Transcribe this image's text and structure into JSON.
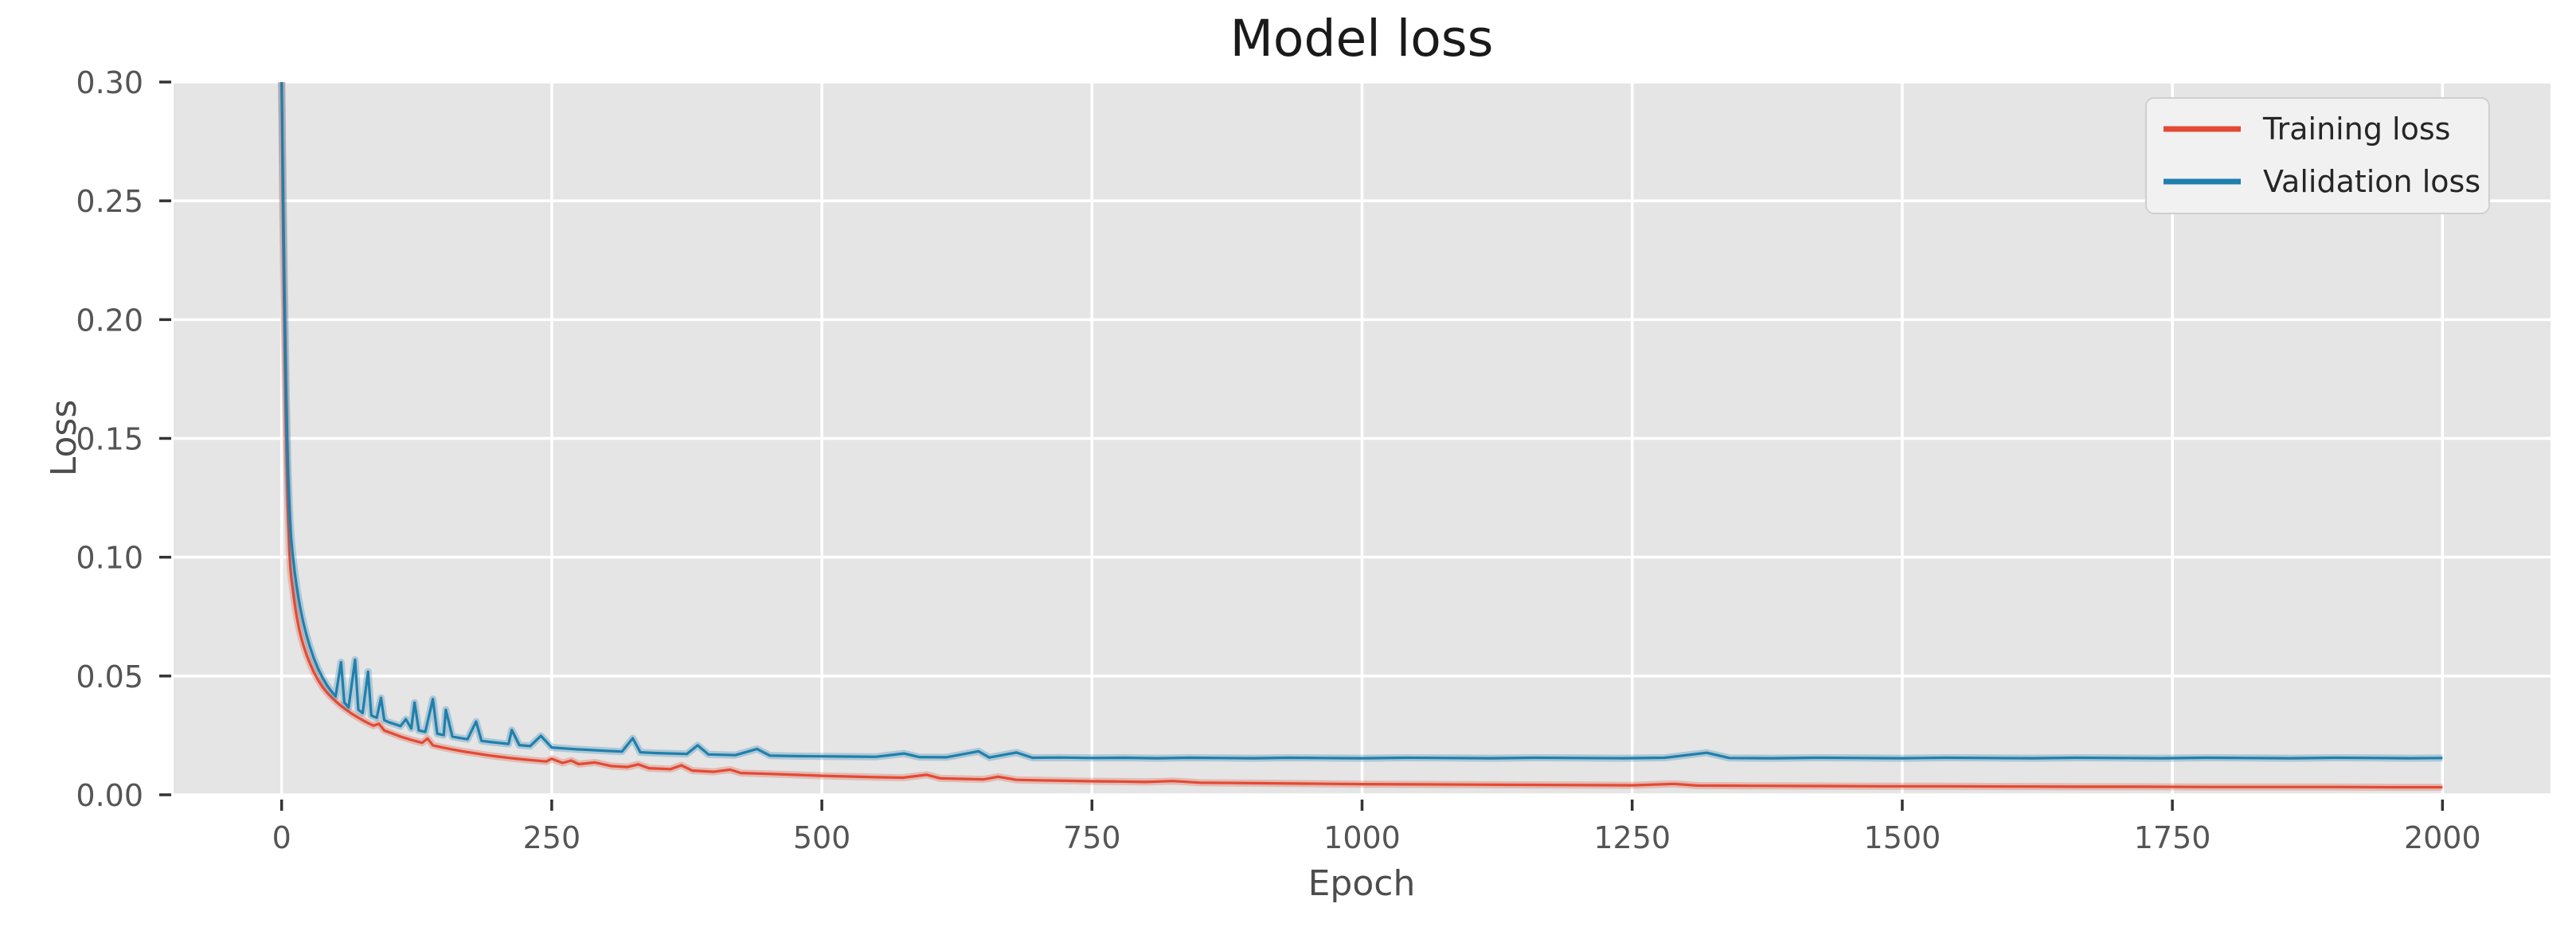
{
  "title": "Model loss",
  "axes": {
    "xlabel": "Epoch",
    "ylabel": "Loss"
  },
  "colors": {
    "figure_bg": "#ffffff",
    "plot_bg": "#e5e5e5",
    "grid": "#ffffff",
    "tick_mark": "#333333",
    "tick_label": "#555555",
    "title_color": "#1a1a1a",
    "axis_label_color": "#4d4d4d",
    "legend_bg": "#f1f1f1",
    "legend_border": "#cfcfcf",
    "training": "#e24a33",
    "validation": "#1f7fad"
  },
  "chart_data": {
    "type": "line",
    "title": "Model loss",
    "xlabel": "Epoch",
    "ylabel": "Loss",
    "xlim": [
      -100,
      2100
    ],
    "ylim": [
      0,
      0.3
    ],
    "xticks": [
      0,
      250,
      500,
      750,
      1000,
      1250,
      1500,
      1750,
      2000
    ],
    "xticklabels": [
      "0",
      "250",
      "500",
      "750",
      "1000",
      "1250",
      "1500",
      "1750",
      "2000"
    ],
    "yticks": [
      0.0,
      0.05,
      0.1,
      0.15,
      0.2,
      0.25,
      0.3
    ],
    "yticklabels": [
      "0.00",
      "0.05",
      "0.10",
      "0.15",
      "0.20",
      "0.25",
      "0.30"
    ],
    "grid": true,
    "legend_position": "upper right",
    "series": [
      {
        "name": "Training loss",
        "color": "#e24a33",
        "points": [
          [
            0,
            0.3
          ],
          [
            1,
            0.252
          ],
          [
            2,
            0.214
          ],
          [
            3,
            0.182
          ],
          [
            4,
            0.156
          ],
          [
            5,
            0.134
          ],
          [
            6,
            0.117
          ],
          [
            7,
            0.104
          ],
          [
            8,
            0.096
          ],
          [
            9,
            0.091
          ],
          [
            10,
            0.0875
          ],
          [
            12,
            0.0805
          ],
          [
            14,
            0.0748
          ],
          [
            16,
            0.0702
          ],
          [
            18,
            0.0664
          ],
          [
            20,
            0.0632
          ],
          [
            23,
            0.059
          ],
          [
            26,
            0.0555
          ],
          [
            30,
            0.0514
          ],
          [
            34,
            0.0481
          ],
          [
            38,
            0.0453
          ],
          [
            42,
            0.043
          ],
          [
            46,
            0.0411
          ],
          [
            50,
            0.0394
          ],
          [
            55,
            0.0374
          ],
          [
            60,
            0.0357
          ],
          [
            65,
            0.0341
          ],
          [
            70,
            0.0327
          ],
          [
            75,
            0.0314
          ],
          [
            80,
            0.0302
          ],
          [
            85,
            0.0291
          ],
          [
            90,
            0.0299
          ],
          [
            95,
            0.0271
          ],
          [
            100,
            0.0262
          ],
          [
            110,
            0.0245
          ],
          [
            120,
            0.0231
          ],
          [
            130,
            0.0219
          ],
          [
            135,
            0.0237
          ],
          [
            140,
            0.0208
          ],
          [
            150,
            0.0198
          ],
          [
            160,
            0.0189
          ],
          [
            170,
            0.0181
          ],
          [
            180,
            0.0174
          ],
          [
            190,
            0.0167
          ],
          [
            200,
            0.0161
          ],
          [
            215,
            0.0153
          ],
          [
            230,
            0.0146
          ],
          [
            245,
            0.014
          ],
          [
            250,
            0.0152
          ],
          [
            260,
            0.0134
          ],
          [
            268,
            0.0144
          ],
          [
            275,
            0.0129
          ],
          [
            290,
            0.0136
          ],
          [
            305,
            0.0121
          ],
          [
            320,
            0.0117
          ],
          [
            330,
            0.0128
          ],
          [
            340,
            0.0112
          ],
          [
            360,
            0.0108
          ],
          [
            370,
            0.0124
          ],
          [
            380,
            0.0102
          ],
          [
            400,
            0.0097
          ],
          [
            415,
            0.0106
          ],
          [
            425,
            0.0092
          ],
          [
            450,
            0.0088
          ],
          [
            475,
            0.0084
          ],
          [
            500,
            0.008
          ],
          [
            525,
            0.0077
          ],
          [
            550,
            0.0074
          ],
          [
            575,
            0.0072
          ],
          [
            597,
            0.0084
          ],
          [
            610,
            0.0069
          ],
          [
            630,
            0.0067
          ],
          [
            650,
            0.0065
          ],
          [
            663,
            0.0076
          ],
          [
            680,
            0.0063
          ],
          [
            700,
            0.0061
          ],
          [
            725,
            0.0059
          ],
          [
            750,
            0.0057
          ],
          [
            775,
            0.0056
          ],
          [
            800,
            0.0054
          ],
          [
            825,
            0.0058
          ],
          [
            850,
            0.0051
          ],
          [
            900,
            0.0049
          ],
          [
            950,
            0.0047
          ],
          [
            1000,
            0.0045
          ],
          [
            1050,
            0.0044
          ],
          [
            1100,
            0.0043
          ],
          [
            1150,
            0.0042
          ],
          [
            1200,
            0.0041
          ],
          [
            1250,
            0.004
          ],
          [
            1289,
            0.0046
          ],
          [
            1310,
            0.0039
          ],
          [
            1360,
            0.0038
          ],
          [
            1420,
            0.0037
          ],
          [
            1480,
            0.0036
          ],
          [
            1540,
            0.0036
          ],
          [
            1600,
            0.0035
          ],
          [
            1660,
            0.0034
          ],
          [
            1720,
            0.0034
          ],
          [
            1780,
            0.0033
          ],
          [
            1840,
            0.0033
          ],
          [
            1900,
            0.0033
          ],
          [
            1950,
            0.0032
          ],
          [
            2000,
            0.0032
          ]
        ]
      },
      {
        "name": "Validation loss",
        "color": "#1f7fad",
        "points": [
          [
            0,
            0.3
          ],
          [
            1,
            0.268
          ],
          [
            2,
            0.233
          ],
          [
            3,
            0.201
          ],
          [
            4,
            0.175
          ],
          [
            5,
            0.153
          ],
          [
            6,
            0.136
          ],
          [
            7,
            0.123
          ],
          [
            8,
            0.114
          ],
          [
            9,
            0.107
          ],
          [
            10,
            0.102
          ],
          [
            12,
            0.094
          ],
          [
            14,
            0.0874
          ],
          [
            16,
            0.0818
          ],
          [
            18,
            0.077
          ],
          [
            20,
            0.0727
          ],
          [
            23,
            0.0672
          ],
          [
            26,
            0.0625
          ],
          [
            30,
            0.0572
          ],
          [
            34,
            0.0528
          ],
          [
            38,
            0.0492
          ],
          [
            42,
            0.0461
          ],
          [
            46,
            0.0436
          ],
          [
            50,
            0.0414
          ],
          [
            55,
            0.0558
          ],
          [
            58,
            0.0389
          ],
          [
            62,
            0.0368
          ],
          [
            68,
            0.0568
          ],
          [
            71,
            0.0358
          ],
          [
            75,
            0.0344
          ],
          [
            80,
            0.0518
          ],
          [
            83,
            0.0334
          ],
          [
            88,
            0.0324
          ],
          [
            92,
            0.0408
          ],
          [
            95,
            0.0314
          ],
          [
            100,
            0.0304
          ],
          [
            105,
            0.0297
          ],
          [
            110,
            0.0289
          ],
          [
            115,
            0.0318
          ],
          [
            120,
            0.0279
          ],
          [
            123,
            0.0388
          ],
          [
            127,
            0.0271
          ],
          [
            133,
            0.0265
          ],
          [
            140,
            0.0403
          ],
          [
            144,
            0.0257
          ],
          [
            150,
            0.0251
          ],
          [
            152,
            0.0358
          ],
          [
            158,
            0.0245
          ],
          [
            165,
            0.0239
          ],
          [
            172,
            0.0234
          ],
          [
            180,
            0.0308
          ],
          [
            185,
            0.0227
          ],
          [
            192,
            0.0223
          ],
          [
            200,
            0.0219
          ],
          [
            210,
            0.0214
          ],
          [
            213,
            0.0273
          ],
          [
            220,
            0.0209
          ],
          [
            230,
            0.0205
          ],
          [
            240,
            0.0248
          ],
          [
            250,
            0.0199
          ],
          [
            262,
            0.0195
          ],
          [
            275,
            0.0191
          ],
          [
            288,
            0.0188
          ],
          [
            300,
            0.0185
          ],
          [
            315,
            0.0182
          ],
          [
            325,
            0.0238
          ],
          [
            332,
            0.0179
          ],
          [
            345,
            0.0176
          ],
          [
            360,
            0.0174
          ],
          [
            375,
            0.0172
          ],
          [
            385,
            0.0208
          ],
          [
            395,
            0.017
          ],
          [
            420,
            0.0167
          ],
          [
            440,
            0.0193
          ],
          [
            452,
            0.0165
          ],
          [
            475,
            0.0163
          ],
          [
            500,
            0.0162
          ],
          [
            525,
            0.0161
          ],
          [
            550,
            0.016
          ],
          [
            576,
            0.0174
          ],
          [
            590,
            0.0159
          ],
          [
            615,
            0.0158
          ],
          [
            645,
            0.0183
          ],
          [
            655,
            0.0157
          ],
          [
            680,
            0.0178
          ],
          [
            695,
            0.0156
          ],
          [
            720,
            0.0157
          ],
          [
            750,
            0.0155
          ],
          [
            780,
            0.0156
          ],
          [
            810,
            0.0154
          ],
          [
            840,
            0.0156
          ],
          [
            870,
            0.0155
          ],
          [
            900,
            0.0154
          ],
          [
            930,
            0.0156
          ],
          [
            960,
            0.0155
          ],
          [
            1000,
            0.0154
          ],
          [
            1040,
            0.0156
          ],
          [
            1080,
            0.0155
          ],
          [
            1120,
            0.0154
          ],
          [
            1160,
            0.0156
          ],
          [
            1200,
            0.0155
          ],
          [
            1240,
            0.0154
          ],
          [
            1280,
            0.0156
          ],
          [
            1319,
            0.0177
          ],
          [
            1340,
            0.0155
          ],
          [
            1380,
            0.0154
          ],
          [
            1420,
            0.0156
          ],
          [
            1460,
            0.0155
          ],
          [
            1500,
            0.0154
          ],
          [
            1540,
            0.0156
          ],
          [
            1580,
            0.0155
          ],
          [
            1620,
            0.0154
          ],
          [
            1660,
            0.0156
          ],
          [
            1700,
            0.0155
          ],
          [
            1740,
            0.0154
          ],
          [
            1780,
            0.0156
          ],
          [
            1820,
            0.0155
          ],
          [
            1860,
            0.0154
          ],
          [
            1900,
            0.0156
          ],
          [
            1940,
            0.0155
          ],
          [
            1970,
            0.0154
          ],
          [
            2000,
            0.0155
          ]
        ]
      }
    ]
  },
  "legend": {
    "items": [
      {
        "label": "Training loss"
      },
      {
        "label": "Validation loss"
      }
    ]
  }
}
